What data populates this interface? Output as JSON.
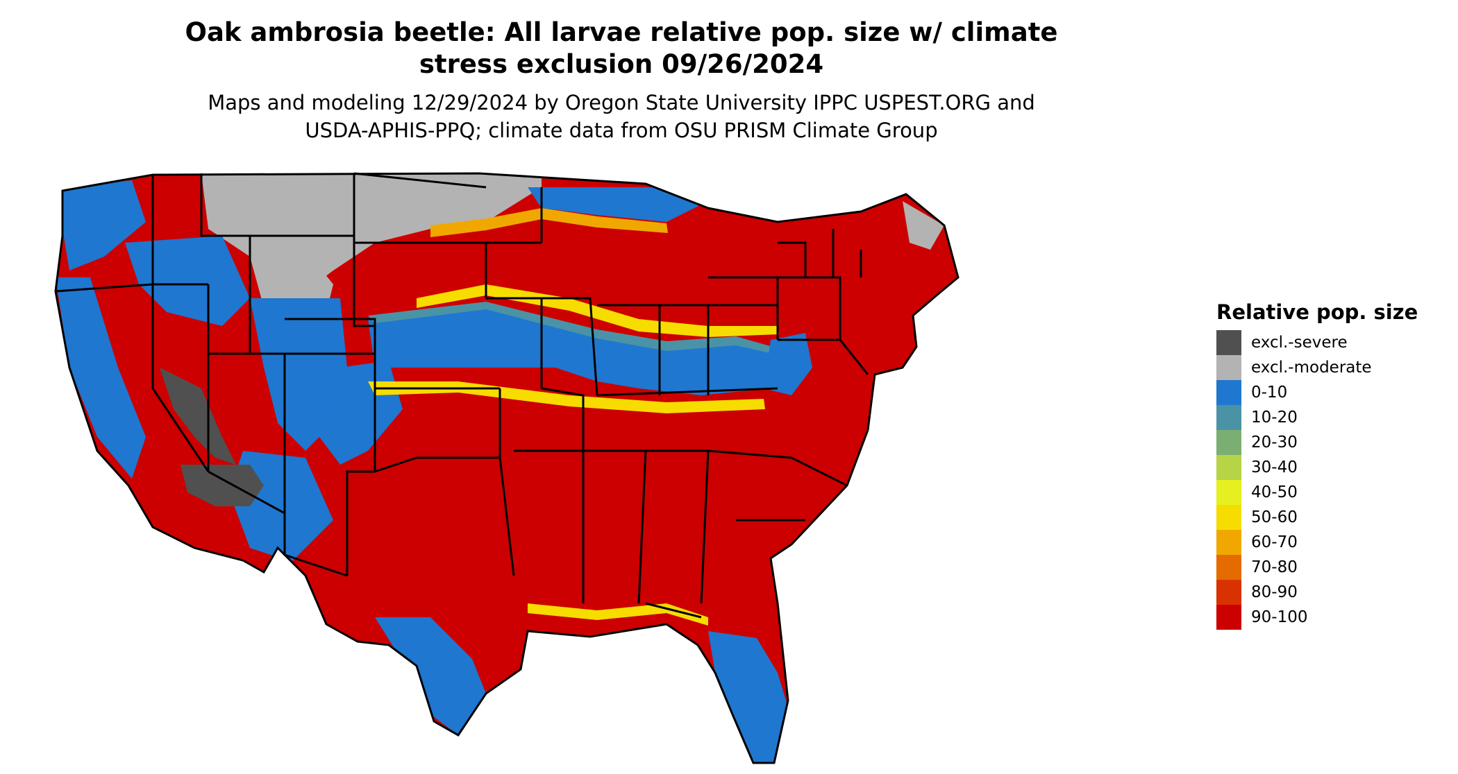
{
  "title_line1": "Oak ambrosia beetle: All larvae relative pop. size w/ climate",
  "title_line2": "stress exclusion 09/26/2024",
  "subtitle_line1": "Maps and modeling 12/29/2024 by Oregon State University IPPC USPEST.ORG and",
  "subtitle_line2": "USDA-APHIS-PPQ; climate data from OSU PRISM Climate Group",
  "legend": {
    "title": "Relative pop. size",
    "items": [
      {
        "label": "excl.-severe",
        "color": "#505050"
      },
      {
        "label": "excl.-moderate",
        "color": "#b3b3b3"
      },
      {
        "label": "0-10",
        "color": "#1f77d0"
      },
      {
        "label": "10-20",
        "color": "#4a93a6"
      },
      {
        "label": "20-30",
        "color": "#7bae72"
      },
      {
        "label": "30-40",
        "color": "#b6d445"
      },
      {
        "label": "40-50",
        "color": "#e6ef1f"
      },
      {
        "label": "50-60",
        "color": "#f7dc00"
      },
      {
        "label": "60-70",
        "color": "#f0a800"
      },
      {
        "label": "70-80",
        "color": "#e56b00"
      },
      {
        "label": "80-90",
        "color": "#d83200"
      },
      {
        "label": "90-100",
        "color": "#cc0000"
      }
    ]
  },
  "map_colors": {
    "severe": "#505050",
    "moderate": "#b3b3b3",
    "low": "#1f77d0",
    "low_mid": "#4a93a6",
    "mid": "#f7dc00",
    "mid_high": "#f0a800",
    "high": "#cc0000"
  }
}
